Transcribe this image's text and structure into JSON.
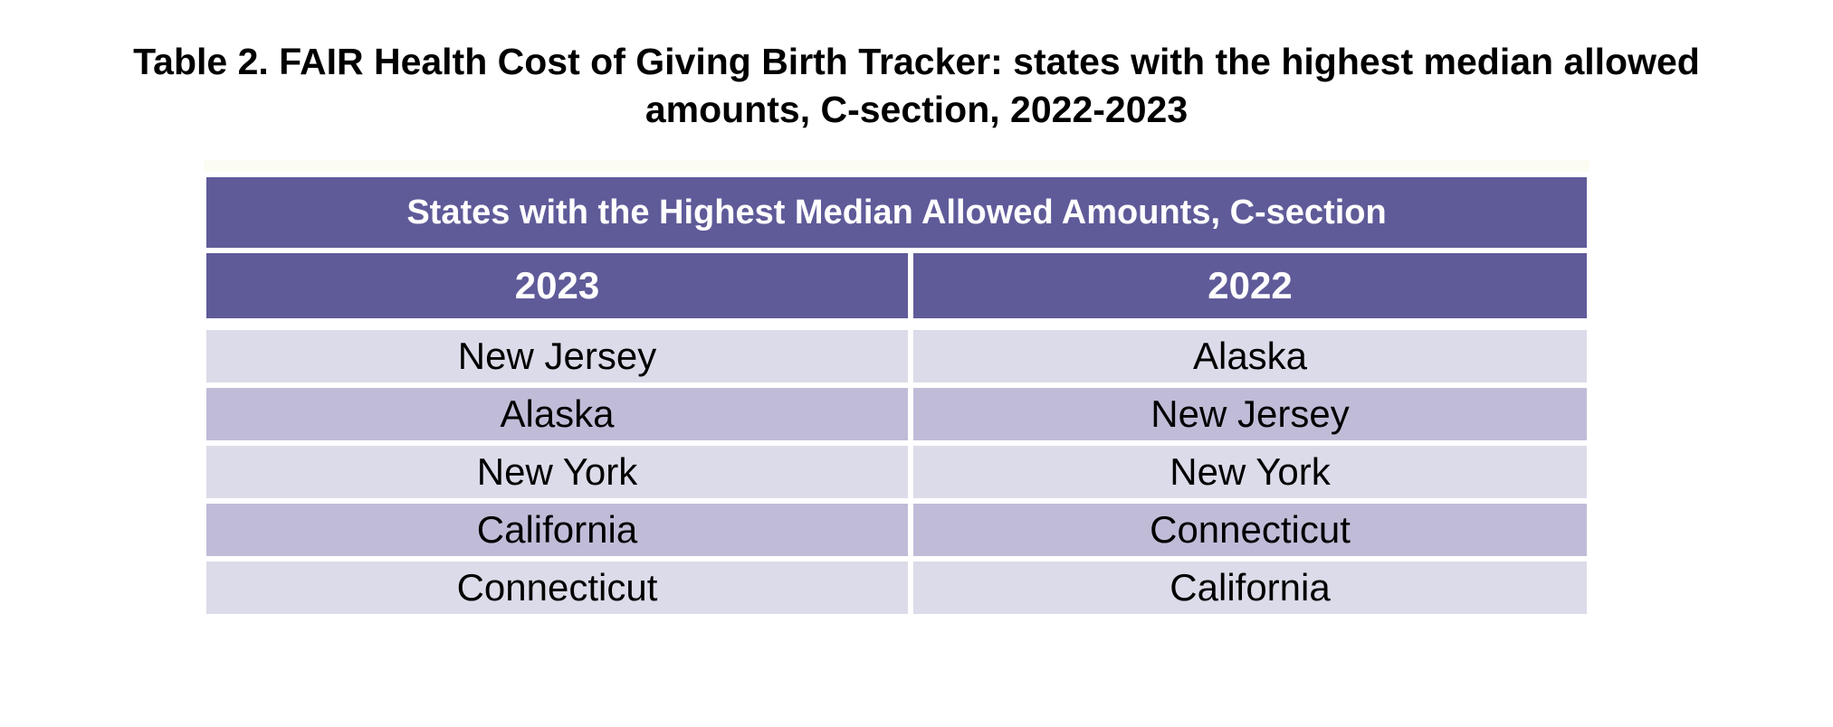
{
  "title": {
    "line1": "Table 2. FAIR Health Cost of Giving Birth Tracker: states with the highest median allowed",
    "line2": "amounts, C-section, 2022-2023"
  },
  "table": {
    "title": "States with the Highest Median Allowed Amounts, C-section",
    "columns": [
      "2023",
      "2022"
    ],
    "rows": [
      [
        "New Jersey",
        "Alaska"
      ],
      [
        "Alaska",
        "New Jersey"
      ],
      [
        "New York",
        "New York"
      ],
      [
        "California",
        "Connecticut"
      ],
      [
        "Connecticut",
        "California"
      ]
    ]
  },
  "colors": {
    "header_bg": "#5f5b99",
    "row_light": "#dcdbe9",
    "row_medium": "#c0bcd8",
    "header_text": "#ffffff",
    "body_text": "#000000",
    "title_text": "#000000",
    "page_bg": "#ffffff",
    "top_strip": "#fdfcf3"
  }
}
